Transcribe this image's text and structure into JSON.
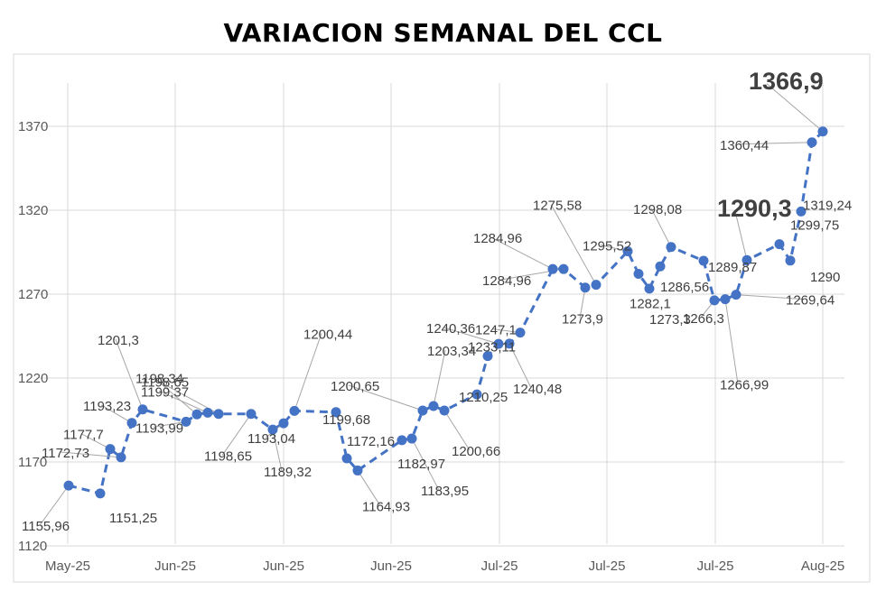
{
  "chart_data": {
    "type": "line",
    "title": "VARIACION SEMANAL DEL CCL",
    "xlabel": "",
    "ylabel": "",
    "ylim": [
      1120,
      1390
    ],
    "y_ticks": [
      1120,
      1170,
      1220,
      1270,
      1320,
      1370
    ],
    "x_tick_labels": [
      "May-25",
      "Jun-25",
      "Jun-25",
      "Jun-25",
      "Jul-25",
      "Jul-25",
      "Jul-25",
      "Aug-25"
    ],
    "grid": true,
    "legend": "none",
    "line_color": "#4472c4",
    "marker_color": "#4472c4",
    "series": [
      {
        "values": [
          1155.96,
          1151.25,
          1177.7,
          1172.73,
          1193.23,
          1201.3,
          1193.99,
          1198.34,
          1199.37,
          1198.65,
          1198.65,
          1189.32,
          1193.04,
          1200.44,
          1199.68,
          1172.16,
          1164.93,
          1182.97,
          1183.95,
          1200.65,
          1203.34,
          1200.66,
          1210.25,
          1233.11,
          1240.36,
          1240.48,
          1247.1,
          1284.96,
          1284.96,
          1273.9,
          1275.58,
          1295.52,
          1282.1,
          1273.3,
          1286.56,
          1298.08,
          1289.87,
          1266.3,
          1266.99,
          1269.64,
          1290.3,
          1299.75,
          1290,
          1319.24,
          1360.44,
          1366.9
        ],
        "labels": [
          "1155,96",
          "1151,25",
          "1177,7",
          "1172,73",
          "1193,23",
          "1201,3",
          "1193,99",
          "1198,34",
          "1199,37",
          "1198,65",
          "1198,65",
          "1189,32",
          "1193,04",
          "1200,44",
          "1199,68",
          "1172,16",
          "1164,93",
          "1182,97",
          "1183,95",
          "1200,65",
          "1203,34",
          "1200,66",
          "1210,25",
          "1233,11",
          "1240,36",
          "1240,48",
          "1247,1",
          "1284,96",
          "1284,96",
          "1273,9",
          "1275,58",
          "1295,52",
          "1282,1",
          "1273,3",
          "1286,56",
          "1298,08",
          "1289,87",
          "1266,3",
          "1266,99",
          "1269,64",
          "1290,3",
          "1299,75",
          "1290",
          "1319,24",
          "1360,44",
          "1366,9"
        ]
      }
    ]
  }
}
